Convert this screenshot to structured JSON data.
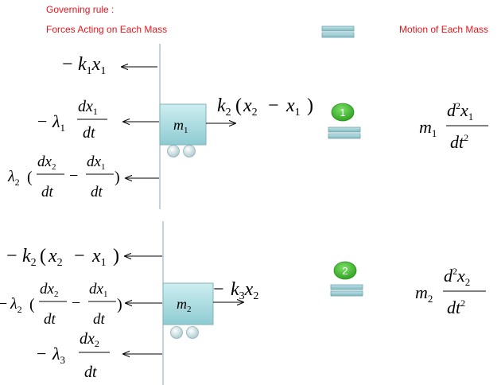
{
  "header": {
    "governing_rule": "Governing rule :",
    "forces_title": "Forces Acting on Each Mass",
    "motion_title": "Motion of Each Mass"
  },
  "mass1": {
    "symbol": "m",
    "subscript": "1",
    "badge": "1",
    "forces": [
      "-k1x1",
      "-λ1 dx1/dt",
      "λ2(dx2/dt - dx1/dt)"
    ],
    "spring_force": "k2(x2 - x1)",
    "motion": "m1 d²x1/dt²"
  },
  "mass2": {
    "symbol": "m",
    "subscript": "2",
    "badge": "2",
    "forces": [
      "-k2(x2 - x1)",
      "-λ2(dx2/dt - dx1/dt)",
      "-λ3 dx2/dt"
    ],
    "spring_force": "-k3x2",
    "motion": "m2 d²x2/dt²"
  },
  "colors": {
    "header_text": "#e8141c",
    "block_fill": "#a9d8dd",
    "badge_fill": "#3dbb2a",
    "equals_fill": "#8fc7cf"
  }
}
